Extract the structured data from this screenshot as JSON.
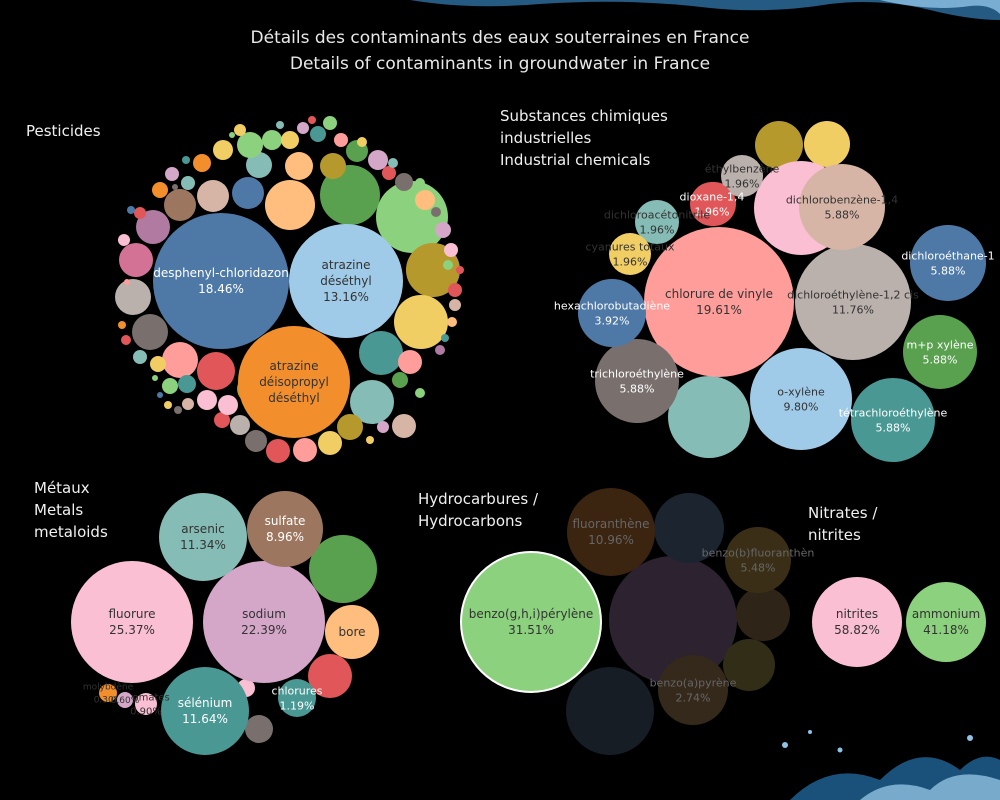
{
  "title_fr": "Détails des contaminants des eaux souterraines en France",
  "title_en": "Details of contaminants in groundwater in France",
  "groups": {
    "pesticides": [
      "Pesticides"
    ],
    "industrial": [
      "Substances chimiques",
      "industrielles",
      "Industrial chemicals"
    ],
    "metals": [
      "Métaux",
      "Metals",
      "metaloids"
    ],
    "hydrocarbons": [
      "Hydrocarbures /",
      "Hydrocarbons"
    ],
    "nitrates": [
      "Nitrates /",
      "nitrites"
    ]
  },
  "chart_data": [
    {
      "type": "bubble",
      "group": "Pesticides",
      "bubbles": [
        {
          "label": "desphenyl-chloridazon",
          "value": "18.46%",
          "color": "#4e79a7"
        },
        {
          "label": "atrazine\ndéséthyl",
          "value": "13.16%",
          "color": "#a0cbe8"
        },
        {
          "label": "atrazine\ndéisopropyl\ndéséthyl",
          "value": "",
          "color": "#f28e2b"
        }
      ]
    },
    {
      "type": "bubble",
      "group": "Industrial chemicals",
      "bubbles": [
        {
          "label": "chlorure de vinyle",
          "value": "19.61%",
          "color": "#ff9d9a"
        },
        {
          "label": "dichloroéthylène-1,2 cis",
          "value": "11.76%",
          "color": "#bab0ac"
        },
        {
          "label": "o-xylène",
          "value": "9.80%",
          "color": "#a0cbe8"
        },
        {
          "label": "trichloroéthylène",
          "value": "5.88%",
          "color": "#79706e"
        },
        {
          "label": "tétrachloroéthylène",
          "value": "5.88%",
          "color": "#499894"
        },
        {
          "label": "m+p xylène",
          "value": "5.88%",
          "color": "#59a14f"
        },
        {
          "label": "dichloroéthane-1",
          "value": "5.88%",
          "color": "#4e79a7"
        },
        {
          "label": "dichlorobenzène-1,4",
          "value": "5.88%",
          "color": "#d7b5a6"
        },
        {
          "label": "hexachlorobutadiène",
          "value": "3.92%",
          "color": "#4e79a7"
        },
        {
          "label": "éthylbenzène",
          "value": "1.96%",
          "color": "#bab0ac"
        },
        {
          "label": "dioxane-1,4",
          "value": "1.96%",
          "color": "#e15759"
        },
        {
          "label": "dichloroacétonitrile",
          "value": "1.96%",
          "color": "#86bcb6"
        },
        {
          "label": "cyanures totaux",
          "value": "1.96%",
          "color": "#f1ce63"
        }
      ]
    },
    {
      "type": "bubble",
      "group": "Métaux / Metals metaloids",
      "bubbles": [
        {
          "label": "fluorure",
          "value": "25.37%",
          "color": "#fabfd2"
        },
        {
          "label": "sodium",
          "value": "22.39%",
          "color": "#d4a6c8"
        },
        {
          "label": "sélénium",
          "value": "11.64%",
          "color": "#499894"
        },
        {
          "label": "arsenic",
          "value": "11.34%",
          "color": "#86bcb6"
        },
        {
          "label": "sulfate",
          "value": "8.96%",
          "color": "#9d7660"
        },
        {
          "label": "bore",
          "value": "",
          "color": "#ffbe7d"
        },
        {
          "label": "chlorures",
          "value": "1.19%",
          "color": "#499894"
        },
        {
          "label": "bromates",
          "value": "0.90%",
          "color": "#fabfd2"
        },
        {
          "label": "molybdène",
          "value": "0.30%",
          "color": "#f28e2b"
        },
        {
          "label": "",
          "value": "0.60%",
          "color": "#d4a6c8"
        }
      ]
    },
    {
      "type": "bubble",
      "group": "Hydrocarbures / Hydrocarbons",
      "bubbles": [
        {
          "label": "benzo(g,h,i)pérylène",
          "value": "31.51%",
          "color": "#8cd17d"
        },
        {
          "label": "fluoranthène",
          "value": "10.96%",
          "color": "#3b2410"
        },
        {
          "label": "benzo(b)fluoranthèn",
          "value": "5.48%",
          "color": "#3a2f16"
        },
        {
          "label": "benzo(a)pyrène",
          "value": "2.74%",
          "color": "#35291b"
        }
      ]
    },
    {
      "type": "bubble",
      "group": "Nitrates / nitrites",
      "bubbles": [
        {
          "label": "nitrites",
          "value": "58.82%",
          "color": "#fabfd2"
        },
        {
          "label": "ammonium",
          "value": "41.18%",
          "color": "#8cd17d"
        }
      ]
    }
  ]
}
